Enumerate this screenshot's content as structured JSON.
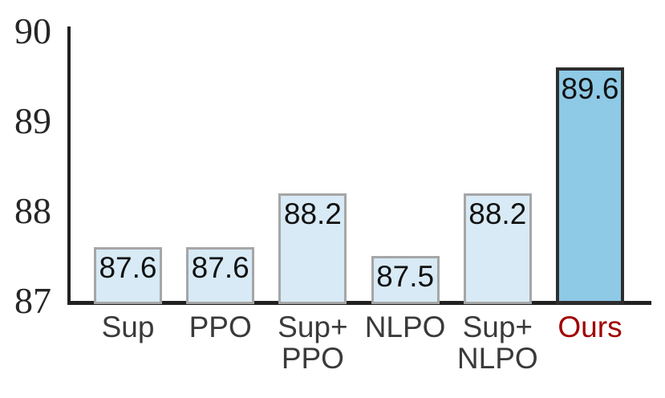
{
  "chart_data": {
    "type": "bar",
    "categories": [
      "Sup",
      "PPO",
      "Sup+\nPPO",
      "NLPO",
      "Sup+\nNLPO",
      "Ours"
    ],
    "values": [
      87.6,
      87.6,
      88.2,
      87.5,
      88.2,
      89.6
    ],
    "value_labels": [
      "87.6",
      "87.6",
      "88.2",
      "87.5",
      "88.2",
      "89.6"
    ],
    "title": "",
    "xlabel": "",
    "ylabel": "",
    "ylim": [
      87,
      90
    ],
    "yticks": [
      87,
      88,
      89,
      90
    ],
    "grid": false,
    "legend": null,
    "highlight_index": 5,
    "colors": {
      "bar_fill": "#d7eaf5",
      "bar_border": "#a6a6a6",
      "highlight_fill": "#8ec9e6",
      "highlight_border": "#2e2e2e",
      "axis": "#212121",
      "tick_label": "#262626",
      "category_label": "#3a3a3a",
      "highlight_category_label": "#a00000",
      "value_label": "#111111"
    }
  }
}
